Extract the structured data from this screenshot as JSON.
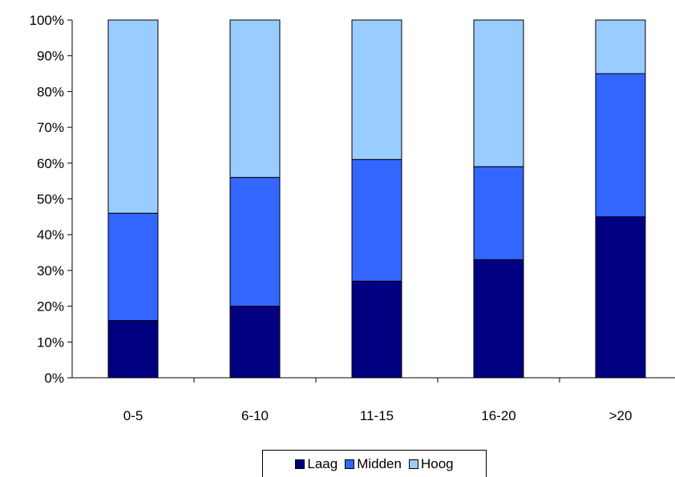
{
  "chart_data": {
    "type": "bar",
    "stacked": true,
    "categories": [
      "0-5",
      "6-10",
      "11-15",
      "16-20",
      ">20"
    ],
    "series": [
      {
        "name": "Laag",
        "color": "#000080",
        "values": [
          16,
          20,
          27,
          33,
          45
        ]
      },
      {
        "name": "Midden",
        "color": "#3366ff",
        "values": [
          30,
          36,
          34,
          26,
          40
        ]
      },
      {
        "name": "Hoog",
        "color": "#99ccff",
        "values": [
          54,
          44,
          39,
          41,
          15
        ]
      }
    ],
    "yticks": [
      "0%",
      "10%",
      "20%",
      "30%",
      "40%",
      "50%",
      "60%",
      "70%",
      "80%",
      "90%",
      "100%"
    ],
    "ylim": [
      0,
      100
    ],
    "grid": false,
    "legend_position": "bottom"
  }
}
